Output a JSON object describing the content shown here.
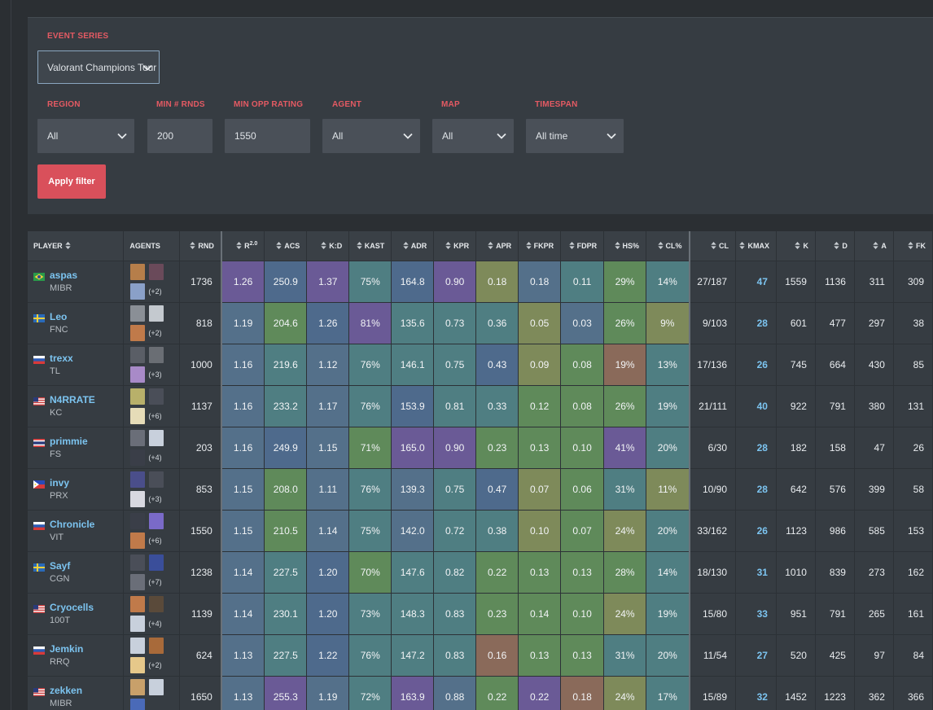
{
  "filters": {
    "event_series": {
      "label": "EVENT SERIES",
      "value": "Valorant Champions Tour"
    },
    "region": {
      "label": "REGION",
      "value": "All"
    },
    "min_rounds": {
      "label": "MIN # RNDS",
      "value": "200"
    },
    "min_opp_rating": {
      "label": "MIN OPP RATING",
      "value": "1550"
    },
    "agent": {
      "label": "AGENT",
      "value": "All"
    },
    "map": {
      "label": "MAP",
      "value": "All"
    },
    "timespan": {
      "label": "TIMESPAN",
      "value": "All time"
    },
    "apply_label": "Apply filter"
  },
  "table": {
    "headers": {
      "player": "PLAYER",
      "agents": "AGENTS",
      "rnd": "RND",
      "rating": "R",
      "rating_sup": "2.0",
      "acs": "ACS",
      "kd": "K:D",
      "kast": "KAST",
      "adr": "ADR",
      "kpr": "KPR",
      "apr": "APR",
      "fkpr": "FKPR",
      "fdpr": "FDPR",
      "hs": "HS%",
      "cl_pct": "CL%",
      "cl": "CL",
      "kmax": "KMAX",
      "k": "K",
      "d": "D",
      "a": "A",
      "fk": "FK"
    },
    "rows": [
      {
        "name": "aspas",
        "team": "MIBR",
        "flag": "br",
        "agents_more": "(+2)",
        "rnd": "1736",
        "rating": "1.26",
        "acs": "250.9",
        "kd": "1.37",
        "kast": "75%",
        "adr": "164.8",
        "kpr": "0.90",
        "apr": "0.18",
        "fkpr": "0.18",
        "fdpr": "0.11",
        "hs": "29%",
        "cl_pct": "14%",
        "cl": "27/187",
        "kmax": "47",
        "k": "1559",
        "d": "1136",
        "a": "311",
        "fk": "309"
      },
      {
        "name": "Leo",
        "team": "FNC",
        "flag": "se",
        "agents_more": "(+2)",
        "rnd": "818",
        "rating": "1.19",
        "acs": "204.6",
        "kd": "1.26",
        "kast": "81%",
        "adr": "135.6",
        "kpr": "0.73",
        "apr": "0.36",
        "fkpr": "0.05",
        "fdpr": "0.03",
        "hs": "26%",
        "cl_pct": "9%",
        "cl": "9/103",
        "kmax": "28",
        "k": "601",
        "d": "477",
        "a": "297",
        "fk": "38"
      },
      {
        "name": "trexx",
        "team": "TL",
        "flag": "ru",
        "agents_more": "(+3)",
        "rnd": "1000",
        "rating": "1.16",
        "acs": "219.6",
        "kd": "1.12",
        "kast": "76%",
        "adr": "146.1",
        "kpr": "0.75",
        "apr": "0.43",
        "fkpr": "0.09",
        "fdpr": "0.08",
        "hs": "19%",
        "cl_pct": "13%",
        "cl": "17/136",
        "kmax": "26",
        "k": "745",
        "d": "664",
        "a": "430",
        "fk": "85"
      },
      {
        "name": "N4RRATE",
        "team": "KC",
        "flag": "us",
        "agents_more": "(+6)",
        "rnd": "1137",
        "rating": "1.16",
        "acs": "233.2",
        "kd": "1.17",
        "kast": "76%",
        "adr": "153.9",
        "kpr": "0.81",
        "apr": "0.33",
        "fkpr": "0.12",
        "fdpr": "0.08",
        "hs": "26%",
        "cl_pct": "19%",
        "cl": "21/111",
        "kmax": "40",
        "k": "922",
        "d": "791",
        "a": "380",
        "fk": "131"
      },
      {
        "name": "primmie",
        "team": "FS",
        "flag": "th",
        "agents_more": "(+4)",
        "rnd": "203",
        "rating": "1.16",
        "acs": "249.9",
        "kd": "1.15",
        "kast": "71%",
        "adr": "165.0",
        "kpr": "0.90",
        "apr": "0.23",
        "fkpr": "0.13",
        "fdpr": "0.10",
        "hs": "41%",
        "cl_pct": "20%",
        "cl": "6/30",
        "kmax": "28",
        "k": "182",
        "d": "158",
        "a": "47",
        "fk": "26"
      },
      {
        "name": "invy",
        "team": "PRX",
        "flag": "ph",
        "agents_more": "(+3)",
        "rnd": "853",
        "rating": "1.15",
        "acs": "208.0",
        "kd": "1.11",
        "kast": "76%",
        "adr": "139.3",
        "kpr": "0.75",
        "apr": "0.47",
        "fkpr": "0.07",
        "fdpr": "0.06",
        "hs": "31%",
        "cl_pct": "11%",
        "cl": "10/90",
        "kmax": "28",
        "k": "642",
        "d": "576",
        "a": "399",
        "fk": "58"
      },
      {
        "name": "Chronicle",
        "team": "VIT",
        "flag": "ru",
        "agents_more": "(+6)",
        "rnd": "1550",
        "rating": "1.15",
        "acs": "210.5",
        "kd": "1.14",
        "kast": "75%",
        "adr": "142.0",
        "kpr": "0.72",
        "apr": "0.38",
        "fkpr": "0.10",
        "fdpr": "0.07",
        "hs": "24%",
        "cl_pct": "20%",
        "cl": "33/162",
        "kmax": "26",
        "k": "1123",
        "d": "986",
        "a": "585",
        "fk": "153"
      },
      {
        "name": "Sayf",
        "team": "CGN",
        "flag": "se",
        "agents_more": "(+7)",
        "rnd": "1238",
        "rating": "1.14",
        "acs": "227.5",
        "kd": "1.20",
        "kast": "70%",
        "adr": "147.6",
        "kpr": "0.82",
        "apr": "0.22",
        "fkpr": "0.13",
        "fdpr": "0.13",
        "hs": "28%",
        "cl_pct": "14%",
        "cl": "18/130",
        "kmax": "31",
        "k": "1010",
        "d": "839",
        "a": "273",
        "fk": "162"
      },
      {
        "name": "Cryocells",
        "team": "100T",
        "flag": "us",
        "agents_more": "(+4)",
        "rnd": "1139",
        "rating": "1.14",
        "acs": "230.1",
        "kd": "1.20",
        "kast": "73%",
        "adr": "148.3",
        "kpr": "0.83",
        "apr": "0.23",
        "fkpr": "0.14",
        "fdpr": "0.10",
        "hs": "24%",
        "cl_pct": "19%",
        "cl": "15/80",
        "kmax": "33",
        "k": "951",
        "d": "791",
        "a": "265",
        "fk": "161"
      },
      {
        "name": "Jemkin",
        "team": "RRQ",
        "flag": "ru",
        "agents_more": "(+2)",
        "rnd": "624",
        "rating": "1.13",
        "acs": "227.5",
        "kd": "1.22",
        "kast": "76%",
        "adr": "147.2",
        "kpr": "0.83",
        "apr": "0.16",
        "fkpr": "0.13",
        "fdpr": "0.13",
        "hs": "31%",
        "cl_pct": "20%",
        "cl": "11/54",
        "kmax": "27",
        "k": "520",
        "d": "425",
        "a": "97",
        "fk": "84"
      },
      {
        "name": "zekken",
        "team": "MIBR",
        "flag": "us",
        "agents_more": "",
        "rnd": "1650",
        "rating": "1.13",
        "acs": "255.3",
        "kd": "1.19",
        "kast": "72%",
        "adr": "163.9",
        "kpr": "0.88",
        "apr": "0.22",
        "fkpr": "0.22",
        "fdpr": "0.18",
        "hs": "24%",
        "cl_pct": "17%",
        "cl": "15/89",
        "kmax": "32",
        "k": "1452",
        "d": "1223",
        "a": "362",
        "fk": "366"
      }
    ]
  },
  "colors": {
    "filter_label": "#e45a63",
    "apply_button": "#d9505b",
    "player_name": "#7cc4f0",
    "cell_scale": {
      "purple": "#6a5a96",
      "slate": "#54708a",
      "blue": "#4e6a8c",
      "teal": "#4f7e82",
      "green": "#5f8a5a",
      "olive": "#7e8a5a",
      "brown": "#8a6a5a"
    }
  }
}
